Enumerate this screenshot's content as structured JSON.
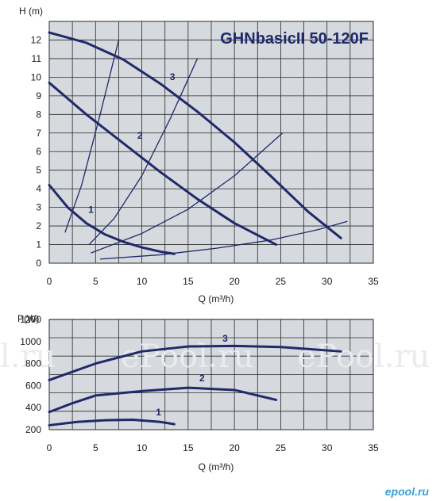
{
  "colors": {
    "panel_bg": "#d6d9de",
    "grid": "#2a2a2a",
    "curve": "#1f2a6b",
    "text": "#1a1a1a",
    "watermark": "#e9ebef",
    "brand": "#3aa0d8"
  },
  "watermark_text": [
    "l.ru",
    "ePool.ru",
    "ePool.ru"
  ],
  "brand_text": "epool.ru",
  "chart_data": [
    {
      "type": "line",
      "title": "GHNbasicII  50-120F",
      "ylabel": "H (m)",
      "xlabel": "Q (m³/h)",
      "xlim": [
        0,
        35
      ],
      "ylim": [
        0,
        13
      ],
      "xticks": [
        "0",
        "5",
        "10",
        "15",
        "20",
        "25",
        "30",
        "35"
      ],
      "yticks": [
        "0",
        "1",
        "2",
        "3",
        "4",
        "5",
        "6",
        "7",
        "8",
        "9",
        "10",
        "11",
        "12"
      ],
      "grid": true,
      "series": [
        {
          "name": "1",
          "x": [
            0,
            2,
            4,
            6,
            8,
            10,
            12,
            13.5
          ],
          "y": [
            4.2,
            3.0,
            2.15,
            1.55,
            1.15,
            0.85,
            0.62,
            0.5
          ]
        },
        {
          "name": "2",
          "x": [
            0,
            4,
            8,
            12,
            16,
            20,
            24.5
          ],
          "y": [
            9.7,
            8.0,
            6.45,
            4.9,
            3.45,
            2.15,
            1.0
          ]
        },
        {
          "name": "3",
          "x": [
            0,
            4,
            8,
            12,
            16,
            20,
            24,
            28,
            31.5
          ],
          "y": [
            12.4,
            11.85,
            10.95,
            9.65,
            8.15,
            6.5,
            4.65,
            2.75,
            1.35
          ]
        }
      ],
      "system_curves": [
        {
          "x": [
            1.7,
            3.5,
            5.5,
            7.5
          ],
          "y": [
            1.65,
            4.2,
            8.0,
            12.0
          ]
        },
        {
          "x": [
            4.3,
            7,
            10,
            13,
            16
          ],
          "y": [
            1.0,
            2.4,
            4.7,
            7.7,
            11.0
          ]
        },
        {
          "x": [
            4.5,
            10,
            15,
            20,
            25.2
          ],
          "y": [
            0.55,
            1.6,
            2.9,
            4.7,
            7.0
          ]
        },
        {
          "x": [
            5.5,
            12,
            18,
            24,
            29,
            32.2
          ],
          "y": [
            0.22,
            0.45,
            0.8,
            1.25,
            1.8,
            2.25
          ]
        }
      ],
      "curve_labels": [
        {
          "text": "1",
          "x": 4.5,
          "y": 2.7
        },
        {
          "text": "2",
          "x": 9.8,
          "y": 6.7
        },
        {
          "text": "3",
          "x": 13.3,
          "y": 9.85
        }
      ]
    },
    {
      "type": "line",
      "title": "",
      "ylabel": "P(W)",
      "xlabel": "Q (m³/h)",
      "xlim": [
        0,
        35
      ],
      "ylim": [
        200,
        1200
      ],
      "xticks": [
        "0",
        "5",
        "10",
        "15",
        "20",
        "25",
        "30",
        "35"
      ],
      "yticks": [
        "200",
        "400",
        "600",
        "800",
        "1000",
        "1200"
      ],
      "grid": true,
      "series": [
        {
          "name": "1",
          "x": [
            0,
            3,
            6,
            9,
            12,
            13.5
          ],
          "y": [
            240,
            270,
            285,
            290,
            270,
            250
          ]
        },
        {
          "name": "2",
          "x": [
            0,
            2.5,
            5,
            10,
            15,
            20,
            24.5
          ],
          "y": [
            360,
            440,
            510,
            550,
            580,
            560,
            470
          ]
        },
        {
          "name": "3",
          "x": [
            0,
            5,
            10,
            15,
            20,
            25,
            31.5
          ],
          "y": [
            650,
            800,
            910,
            955,
            960,
            950,
            910
          ]
        }
      ],
      "curve_labels": [
        {
          "text": "1",
          "x": 11.8,
          "y": 330
        },
        {
          "text": "2",
          "x": 16.5,
          "y": 640
        },
        {
          "text": "3",
          "x": 19,
          "y": 1000
        }
      ]
    }
  ]
}
